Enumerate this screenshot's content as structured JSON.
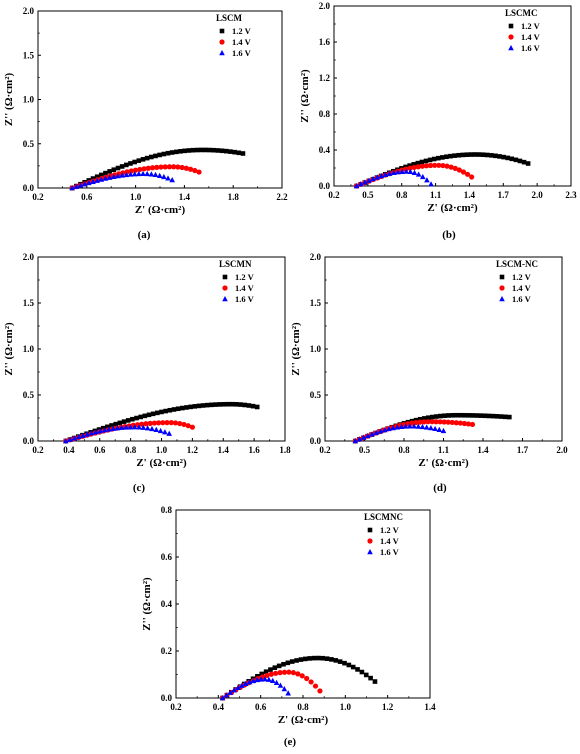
{
  "chart_data": [
    {
      "type": "scatter",
      "panel_label": "(a)",
      "title": "LSCM",
      "xlabel": "Z' (Ω·cm²)",
      "ylabel": "Z'' (Ω·cm²)",
      "xlim": [
        0.2,
        2.2
      ],
      "ylim": [
        0,
        2.0
      ],
      "xticks": [
        "0.2",
        "0.6",
        "1.0",
        "1.4",
        "1.8",
        "2.2"
      ],
      "yticks": [
        "0.0",
        "0.5",
        "1.0",
        "1.5",
        "2.0"
      ],
      "legend_position": "top-right",
      "series": [
        {
          "name": "1.2 V",
          "marker": "square",
          "color": "#000000",
          "x_start": 0.48,
          "x_end": 1.88,
          "x_peak": 1.55,
          "peak": 0.43,
          "y_end": 0.39
        },
        {
          "name": "1.4 V",
          "marker": "circle",
          "color": "#ff0000",
          "x_start": 0.48,
          "x_end": 1.52,
          "x_peak": 1.3,
          "peak": 0.24,
          "y_end": 0.18
        },
        {
          "name": "1.6 V",
          "marker": "triangle",
          "color": "#0000ff",
          "x_start": 0.48,
          "x_end": 1.3,
          "x_peak": 1.07,
          "peak": 0.16,
          "y_end": 0.09
        }
      ]
    },
    {
      "type": "scatter",
      "panel_label": "(b)",
      "title": "LSCMC",
      "xlabel": "Z' (Ω·cm²)",
      "ylabel": "Z'' (Ω·cm²)",
      "xlim": [
        0.2,
        2.3
      ],
      "ylim": [
        0,
        2.0
      ],
      "xticks": [
        "0.2",
        "0.5",
        "0.8",
        "1.1",
        "1.4",
        "1.7",
        "2.0",
        "2.3"
      ],
      "yticks": [
        "0.0",
        "0.4",
        "0.8",
        "1.2",
        "1.6",
        "2.0"
      ],
      "legend_position": "top-right",
      "series": [
        {
          "name": "1.2 V",
          "marker": "square",
          "color": "#000000",
          "x_start": 0.4,
          "x_end": 1.92,
          "x_peak": 1.45,
          "peak": 0.35,
          "y_end": 0.25
        },
        {
          "name": "1.4 V",
          "marker": "circle",
          "color": "#ff0000",
          "x_start": 0.4,
          "x_end": 1.42,
          "x_peak": 1.12,
          "peak": 0.23,
          "y_end": 0.1
        },
        {
          "name": "1.6 V",
          "marker": "triangle",
          "color": "#0000ff",
          "x_start": 0.4,
          "x_end": 1.06,
          "x_peak": 0.85,
          "peak": 0.16,
          "y_end": 0.02
        }
      ]
    },
    {
      "type": "scatter",
      "panel_label": "(c)",
      "title": "LSCMN",
      "xlabel": "Z' (Ω·cm²)",
      "ylabel": "Z'' (Ω·cm²)",
      "xlim": [
        0.2,
        1.8
      ],
      "ylim": [
        0,
        2.0
      ],
      "xticks": [
        "0.2",
        "0.4",
        "0.6",
        "0.8",
        "1.0",
        "1.2",
        "1.4",
        "1.6",
        "1.8"
      ],
      "yticks": [
        "0.0",
        "0.5",
        "1.0",
        "1.5",
        "2.0"
      ],
      "legend_position": "top-right",
      "series": [
        {
          "name": "1.2 V",
          "marker": "square",
          "color": "#000000",
          "x_start": 0.38,
          "x_end": 1.62,
          "x_peak": 1.45,
          "peak": 0.4,
          "y_end": 0.37
        },
        {
          "name": "1.4 V",
          "marker": "circle",
          "color": "#ff0000",
          "x_start": 0.38,
          "x_end": 1.2,
          "x_peak": 1.05,
          "peak": 0.2,
          "y_end": 0.15
        },
        {
          "name": "1.6 V",
          "marker": "triangle",
          "color": "#0000ff",
          "x_start": 0.38,
          "x_end": 1.05,
          "x_peak": 0.82,
          "peak": 0.15,
          "y_end": 0.08
        }
      ]
    },
    {
      "type": "scatter",
      "panel_label": "(d)",
      "title": "LSCM-NC",
      "xlabel": "Z' (Ω·cm²)",
      "ylabel": "Z'' (Ω·cm²)",
      "xlim": [
        0.2,
        2.0
      ],
      "ylim": [
        0,
        2.0
      ],
      "xticks": [
        "0.2",
        "0.5",
        "0.8",
        "1.1",
        "1.4",
        "1.7",
        "2.0"
      ],
      "yticks": [
        "0.0",
        "0.5",
        "1.0",
        "1.5",
        "2.0"
      ],
      "legend_position": "top-right",
      "series": [
        {
          "name": "1.2 V",
          "marker": "square",
          "color": "#000000",
          "x_start": 0.43,
          "x_end": 1.6,
          "x_peak": 1.2,
          "peak": 0.28,
          "y_end": 0.26
        },
        {
          "name": "1.4 V",
          "marker": "circle",
          "color": "#ff0000",
          "x_start": 0.43,
          "x_end": 1.32,
          "x_peak": 1.0,
          "peak": 0.21,
          "y_end": 0.18
        },
        {
          "name": "1.6 V",
          "marker": "triangle",
          "color": "#0000ff",
          "x_start": 0.43,
          "x_end": 1.1,
          "x_peak": 0.85,
          "peak": 0.16,
          "y_end": 0.11
        }
      ]
    },
    {
      "type": "scatter",
      "panel_label": "(e)",
      "title": "LSCMNC",
      "xlabel": "Z' (Ω·cm²)",
      "ylabel": "Z'' (Ω·cm²)",
      "xlim": [
        0.2,
        1.4
      ],
      "ylim": [
        0,
        0.8
      ],
      "xticks": [
        "0.2",
        "0.4",
        "0.6",
        "0.8",
        "1.0",
        "1.2",
        "1.4"
      ],
      "yticks": [
        "0.0",
        "0.2",
        "0.4",
        "0.6",
        "0.8"
      ],
      "legend_position": "top-right",
      "series": [
        {
          "name": "1.2 V",
          "marker": "square",
          "color": "#000000",
          "x_start": 0.42,
          "x_end": 1.14,
          "x_peak": 0.87,
          "peak": 0.17,
          "y_end": 0.07
        },
        {
          "name": "1.4 V",
          "marker": "circle",
          "color": "#ff0000",
          "x_start": 0.42,
          "x_end": 0.88,
          "x_peak": 0.73,
          "peak": 0.11,
          "y_end": 0.03
        },
        {
          "name": "1.6 V",
          "marker": "triangle",
          "color": "#0000ff",
          "x_start": 0.42,
          "x_end": 0.73,
          "x_peak": 0.62,
          "peak": 0.08,
          "y_end": 0.02
        }
      ]
    }
  ]
}
